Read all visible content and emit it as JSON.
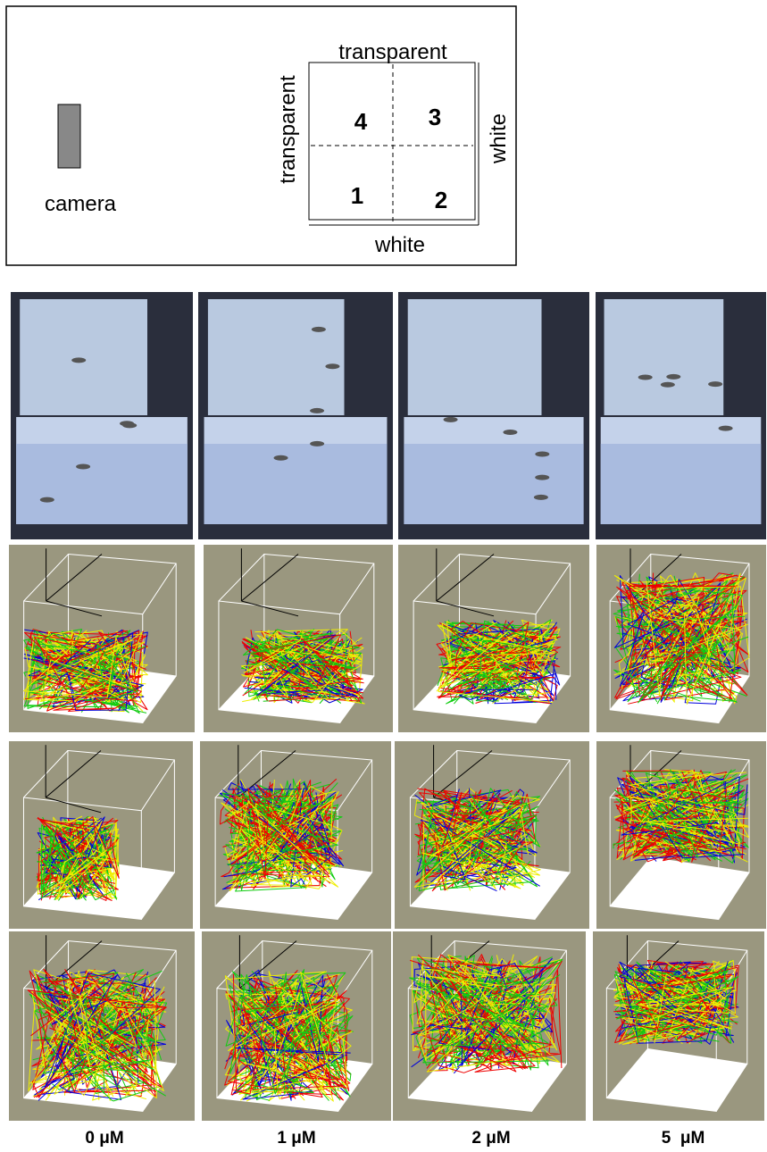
{
  "diagram": {
    "labels": {
      "top": "transparent",
      "left": "transparent",
      "right": "white",
      "bottom": "white"
    },
    "camera": "camera",
    "zones": [
      "4",
      "3",
      "1",
      "2"
    ]
  },
  "columns": [
    "0 μM",
    "1 μM",
    "2 μM",
    "5  μM"
  ]
}
